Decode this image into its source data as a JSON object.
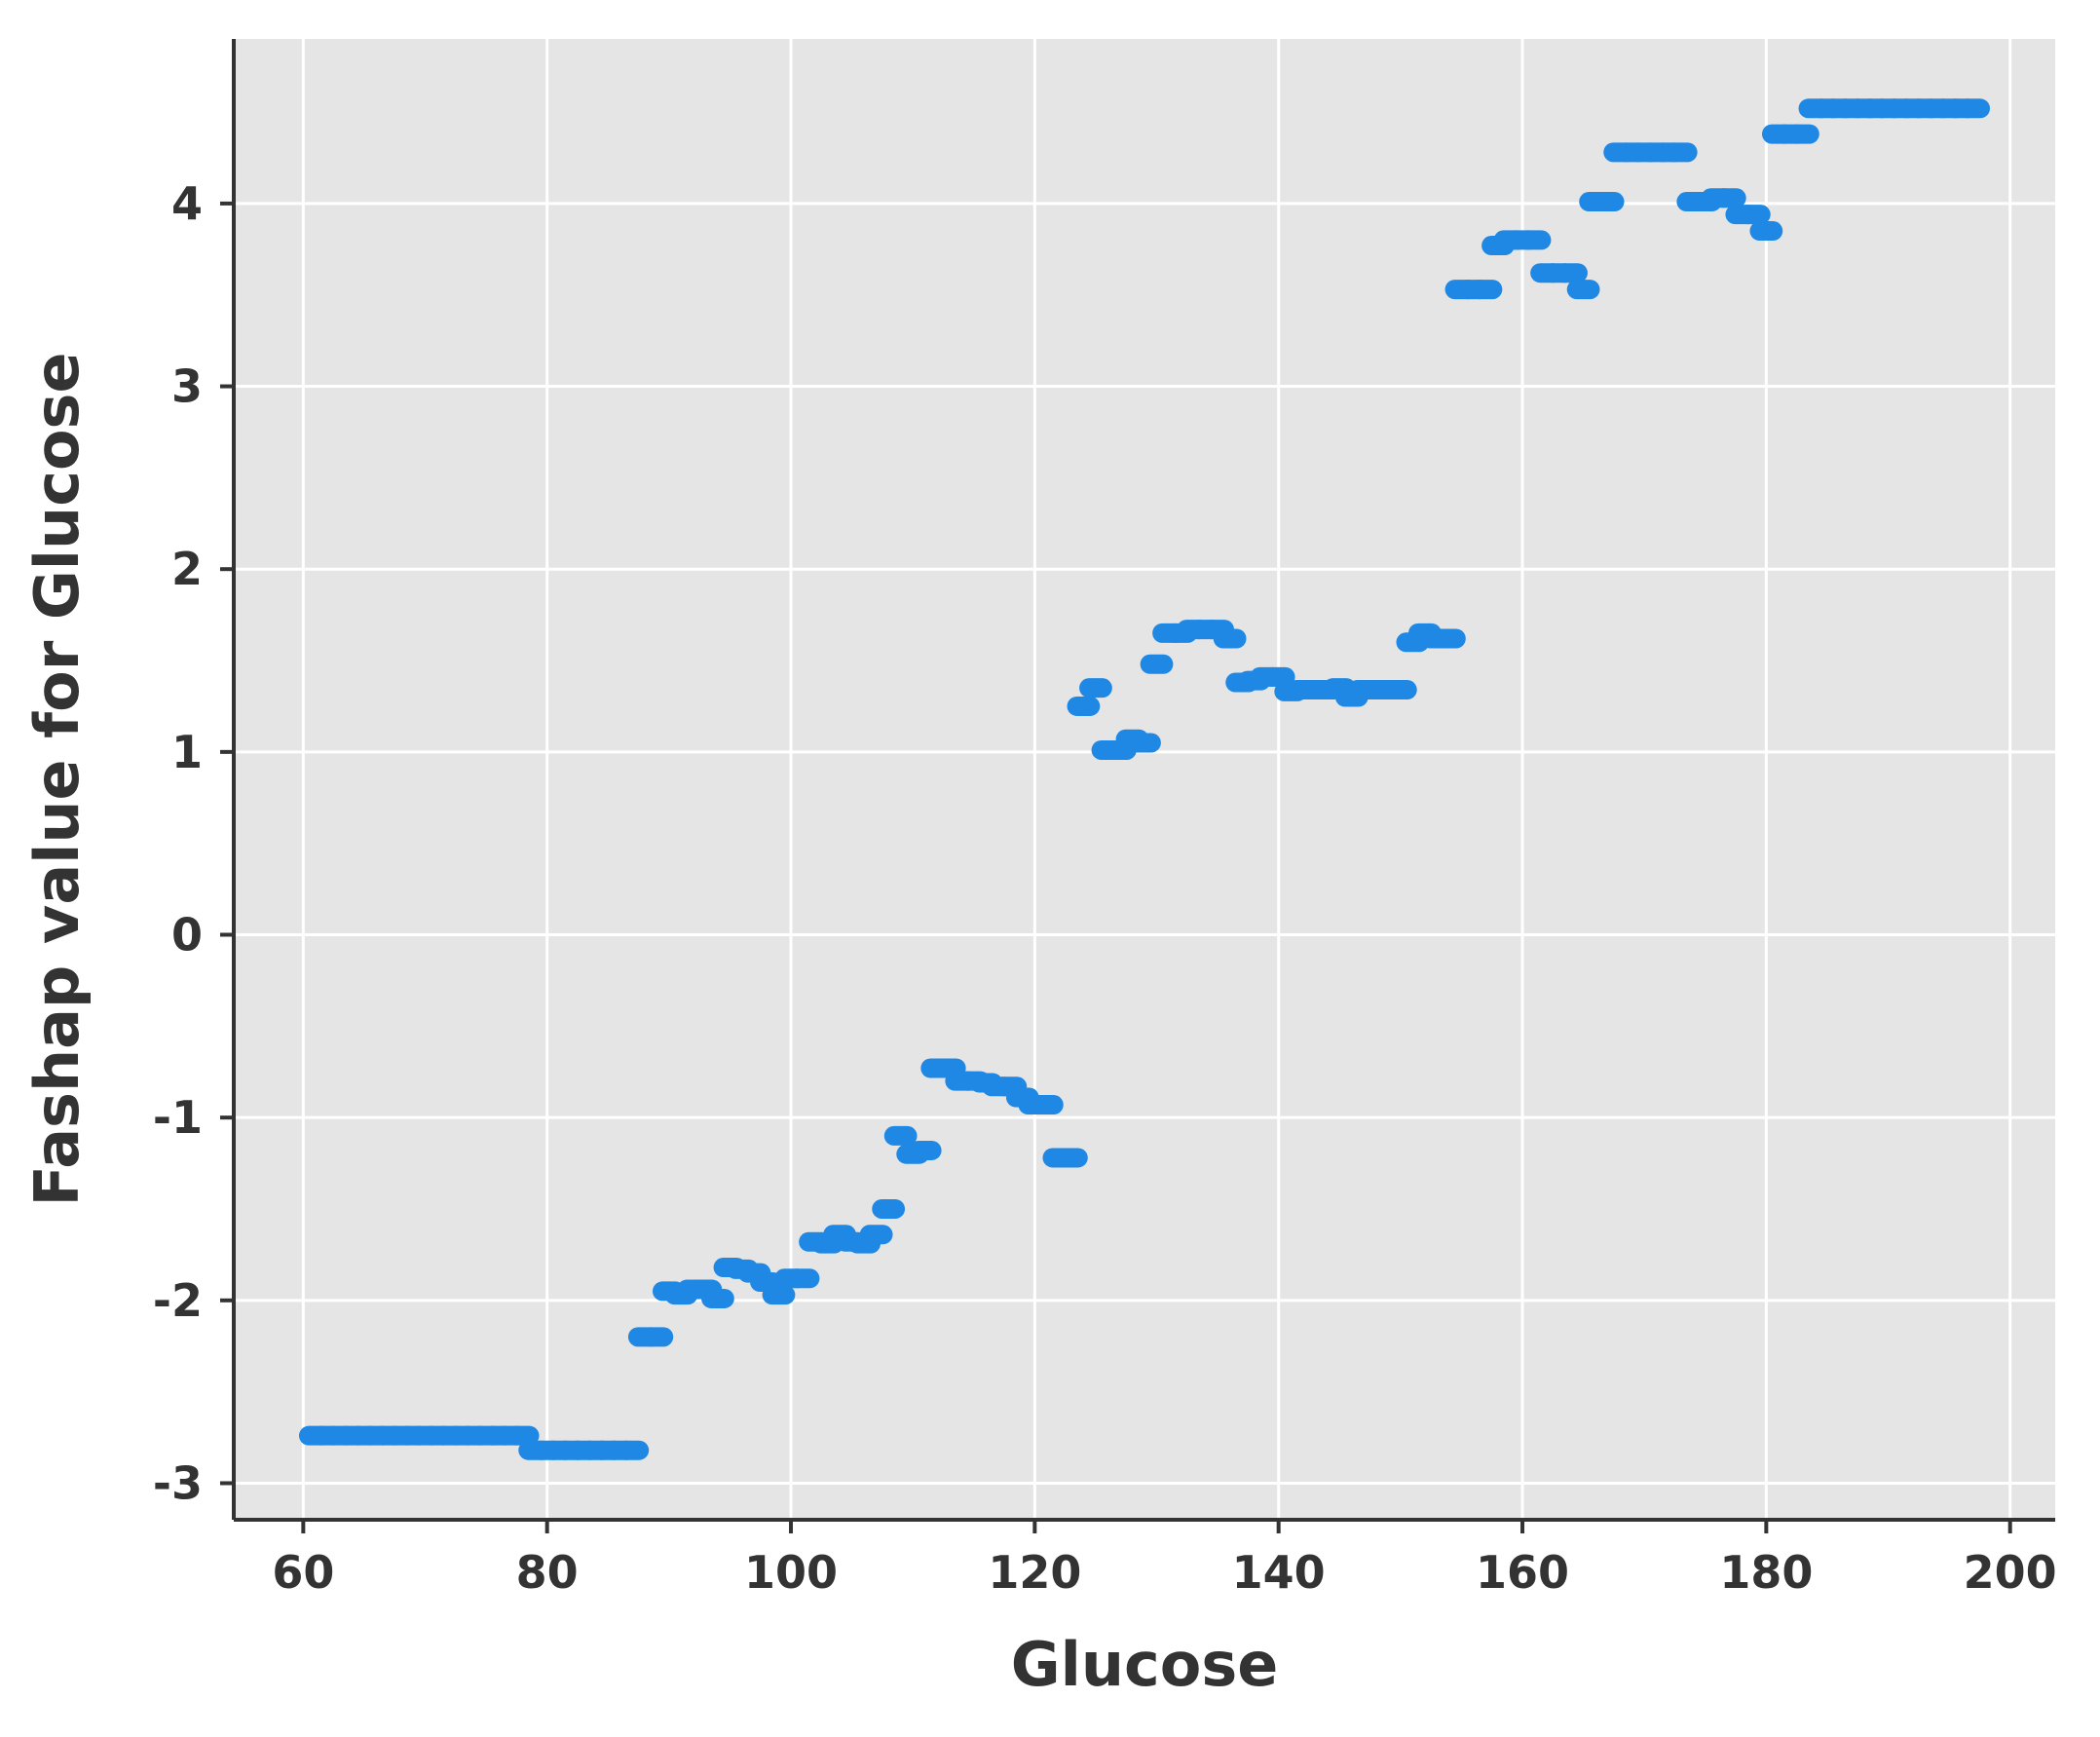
{
  "chart_data": {
    "type": "scatter",
    "title": "",
    "xlabel": "Glucose",
    "ylabel": "Fashap value for Glucose",
    "xlim": [
      54.3,
      203.7
    ],
    "ylim": [
      -3.2,
      4.9
    ],
    "xticks": [
      60,
      80,
      100,
      120,
      140,
      160,
      180,
      200
    ],
    "xtick_labels": [
      "60",
      "80",
      "100",
      "120",
      "140",
      "160",
      "180",
      "200"
    ],
    "yticks": [
      -3,
      -2,
      -1,
      0,
      1,
      2,
      3,
      4
    ],
    "ytick_labels": [
      "-3",
      "-2",
      "-1",
      "0",
      "1",
      "2",
      "3",
      "4"
    ],
    "grid": true,
    "colors": {
      "point": "#1f88e5",
      "panel_background": "#e5e5e5",
      "grid": "#ffffff",
      "axis": "#333333"
    },
    "series": [
      {
        "points": [
          [
            61,
            -2.74
          ],
          [
            62,
            -2.74
          ],
          [
            63,
            -2.74
          ],
          [
            64,
            -2.74
          ],
          [
            65,
            -2.74
          ],
          [
            66,
            -2.74
          ],
          [
            67,
            -2.74
          ],
          [
            68,
            -2.74
          ],
          [
            69,
            -2.74
          ],
          [
            70,
            -2.74
          ],
          [
            71,
            -2.74
          ],
          [
            72,
            -2.74
          ],
          [
            73,
            -2.74
          ],
          [
            74,
            -2.74
          ],
          [
            75,
            -2.74
          ],
          [
            76,
            -2.74
          ],
          [
            77,
            -2.74
          ],
          [
            78,
            -2.74
          ],
          [
            79,
            -2.82
          ],
          [
            80,
            -2.82
          ],
          [
            81,
            -2.82
          ],
          [
            82,
            -2.82
          ],
          [
            83,
            -2.82
          ],
          [
            84,
            -2.82
          ],
          [
            85,
            -2.82
          ],
          [
            86,
            -2.82
          ],
          [
            87,
            -2.82
          ],
          [
            88,
            -2.2
          ],
          [
            89,
            -2.2
          ],
          [
            90,
            -1.95
          ],
          [
            91,
            -1.97
          ],
          [
            92,
            -1.94
          ],
          [
            93,
            -1.94
          ],
          [
            94,
            -1.99
          ],
          [
            95,
            -1.82
          ],
          [
            96,
            -1.83
          ],
          [
            97,
            -1.85
          ],
          [
            98,
            -1.9
          ],
          [
            99,
            -1.97
          ],
          [
            100,
            -1.88
          ],
          [
            101,
            -1.88
          ],
          [
            102,
            -1.68
          ],
          [
            103,
            -1.69
          ],
          [
            104,
            -1.64
          ],
          [
            105,
            -1.68
          ],
          [
            106,
            -1.69
          ],
          [
            107,
            -1.64
          ],
          [
            108,
            -1.5
          ],
          [
            109,
            -1.1
          ],
          [
            110,
            -1.2
          ],
          [
            111,
            -1.18
          ],
          [
            112,
            -0.73
          ],
          [
            113,
            -0.73
          ],
          [
            114,
            -0.8
          ],
          [
            115,
            -0.8
          ],
          [
            116,
            -0.81
          ],
          [
            117,
            -0.83
          ],
          [
            118,
            -0.83
          ],
          [
            119,
            -0.89
          ],
          [
            120,
            -0.93
          ],
          [
            121,
            -0.93
          ],
          [
            122,
            -1.22
          ],
          [
            123,
            -1.22
          ],
          [
            124,
            1.25
          ],
          [
            125,
            1.35
          ],
          [
            126,
            1.01
          ],
          [
            127,
            1.01
          ],
          [
            128,
            1.07
          ],
          [
            129,
            1.05
          ],
          [
            130,
            1.48
          ],
          [
            131,
            1.65
          ],
          [
            132,
            1.65
          ],
          [
            133,
            1.67
          ],
          [
            134,
            1.67
          ],
          [
            135,
            1.67
          ],
          [
            136,
            1.62
          ],
          [
            137,
            1.38
          ],
          [
            138,
            1.39
          ],
          [
            139,
            1.41
          ],
          [
            140,
            1.41
          ],
          [
            141,
            1.33
          ],
          [
            142,
            1.34
          ],
          [
            143,
            1.34
          ],
          [
            144,
            1.34
          ],
          [
            145,
            1.35
          ],
          [
            146,
            1.3
          ],
          [
            147,
            1.34
          ],
          [
            148,
            1.34
          ],
          [
            149,
            1.34
          ],
          [
            150,
            1.34
          ],
          [
            151,
            1.6
          ],
          [
            152,
            1.65
          ],
          [
            153,
            1.62
          ],
          [
            154,
            1.62
          ],
          [
            155,
            3.53
          ],
          [
            156,
            3.53
          ],
          [
            157,
            3.53
          ],
          [
            158,
            3.77
          ],
          [
            159,
            3.8
          ],
          [
            160,
            3.8
          ],
          [
            161,
            3.8
          ],
          [
            162,
            3.62
          ],
          [
            163,
            3.62
          ],
          [
            164,
            3.62
          ],
          [
            165,
            3.53
          ],
          [
            166,
            4.01
          ],
          [
            167,
            4.01
          ],
          [
            168,
            4.28
          ],
          [
            169,
            4.28
          ],
          [
            170,
            4.28
          ],
          [
            171,
            4.28
          ],
          [
            172,
            4.28
          ],
          [
            173,
            4.28
          ],
          [
            174,
            4.01
          ],
          [
            175,
            4.01
          ],
          [
            176,
            4.03
          ],
          [
            177,
            4.03
          ],
          [
            178,
            3.94
          ],
          [
            179,
            3.94
          ],
          [
            180,
            3.85
          ],
          [
            181,
            4.38
          ],
          [
            182,
            4.38
          ],
          [
            183,
            4.38
          ],
          [
            184,
            4.52
          ],
          [
            185,
            4.52
          ],
          [
            186,
            4.52
          ],
          [
            187,
            4.52
          ],
          [
            188,
            4.52
          ],
          [
            189,
            4.52
          ],
          [
            190,
            4.52
          ],
          [
            191,
            4.52
          ],
          [
            192,
            4.52
          ],
          [
            193,
            4.52
          ],
          [
            194,
            4.52
          ],
          [
            195,
            4.52
          ],
          [
            196,
            4.52
          ],
          [
            197,
            4.52
          ]
        ]
      }
    ]
  }
}
